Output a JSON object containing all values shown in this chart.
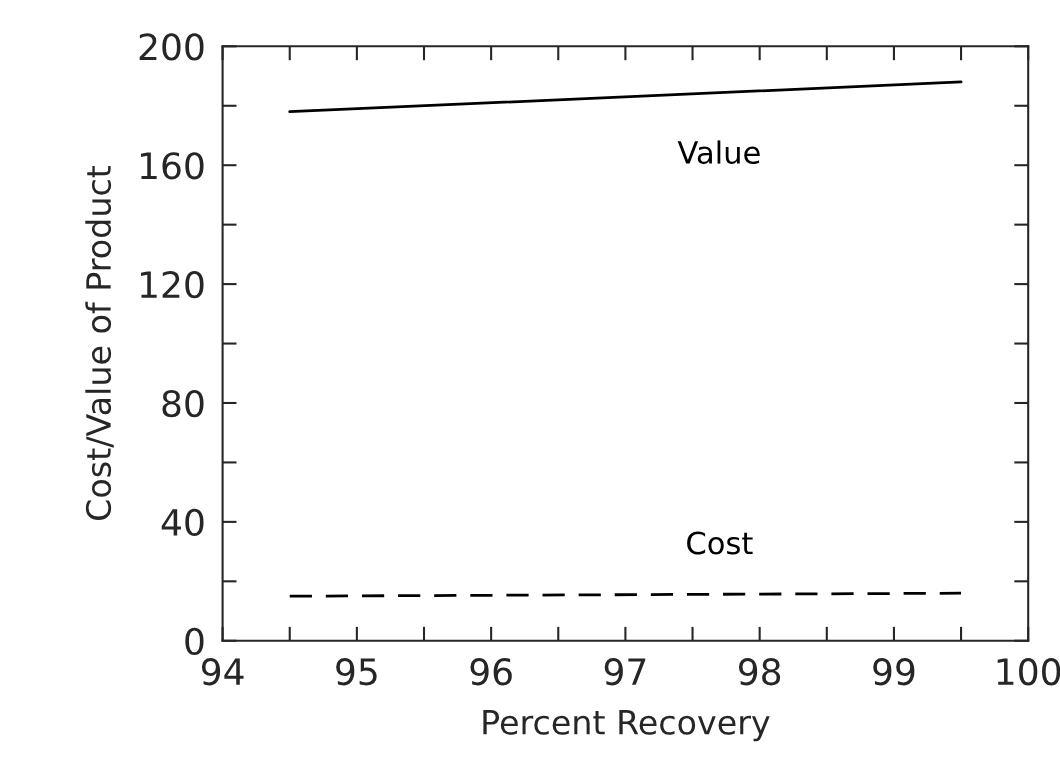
{
  "chart_data": {
    "type": "line",
    "xlabel": "Percent Recovery",
    "ylabel": "Cost/Value of Product",
    "xlim": [
      94,
      100
    ],
    "ylim": [
      0,
      200
    ],
    "xticks": [
      94,
      {
        "value": 94.5,
        "label": null
      },
      95,
      {
        "value": 95.5,
        "label": null
      },
      96,
      {
        "value": 96.5,
        "label": null
      },
      97,
      {
        "value": 97.5,
        "label": null
      },
      98,
      {
        "value": 98.5,
        "label": null
      },
      99,
      {
        "value": 99.5,
        "label": null
      },
      100
    ],
    "yticks": [
      0,
      {
        "value": 20,
        "label": null
      },
      40,
      {
        "value": 60,
        "label": null
      },
      80,
      {
        "value": 100,
        "label": null
      },
      120,
      {
        "value": 140,
        "label": null
      },
      160,
      {
        "value": 180,
        "label": null
      },
      200
    ],
    "x": [
      94.5,
      99.5
    ],
    "series": [
      {
        "name": "Value",
        "color": "#000000",
        "line_style": "solid",
        "values": [
          178,
          188
        ]
      },
      {
        "name": "Cost",
        "color": "#000000",
        "line_style": "dashed",
        "values": [
          15,
          16
        ]
      }
    ],
    "grid": false,
    "legend": false
  }
}
